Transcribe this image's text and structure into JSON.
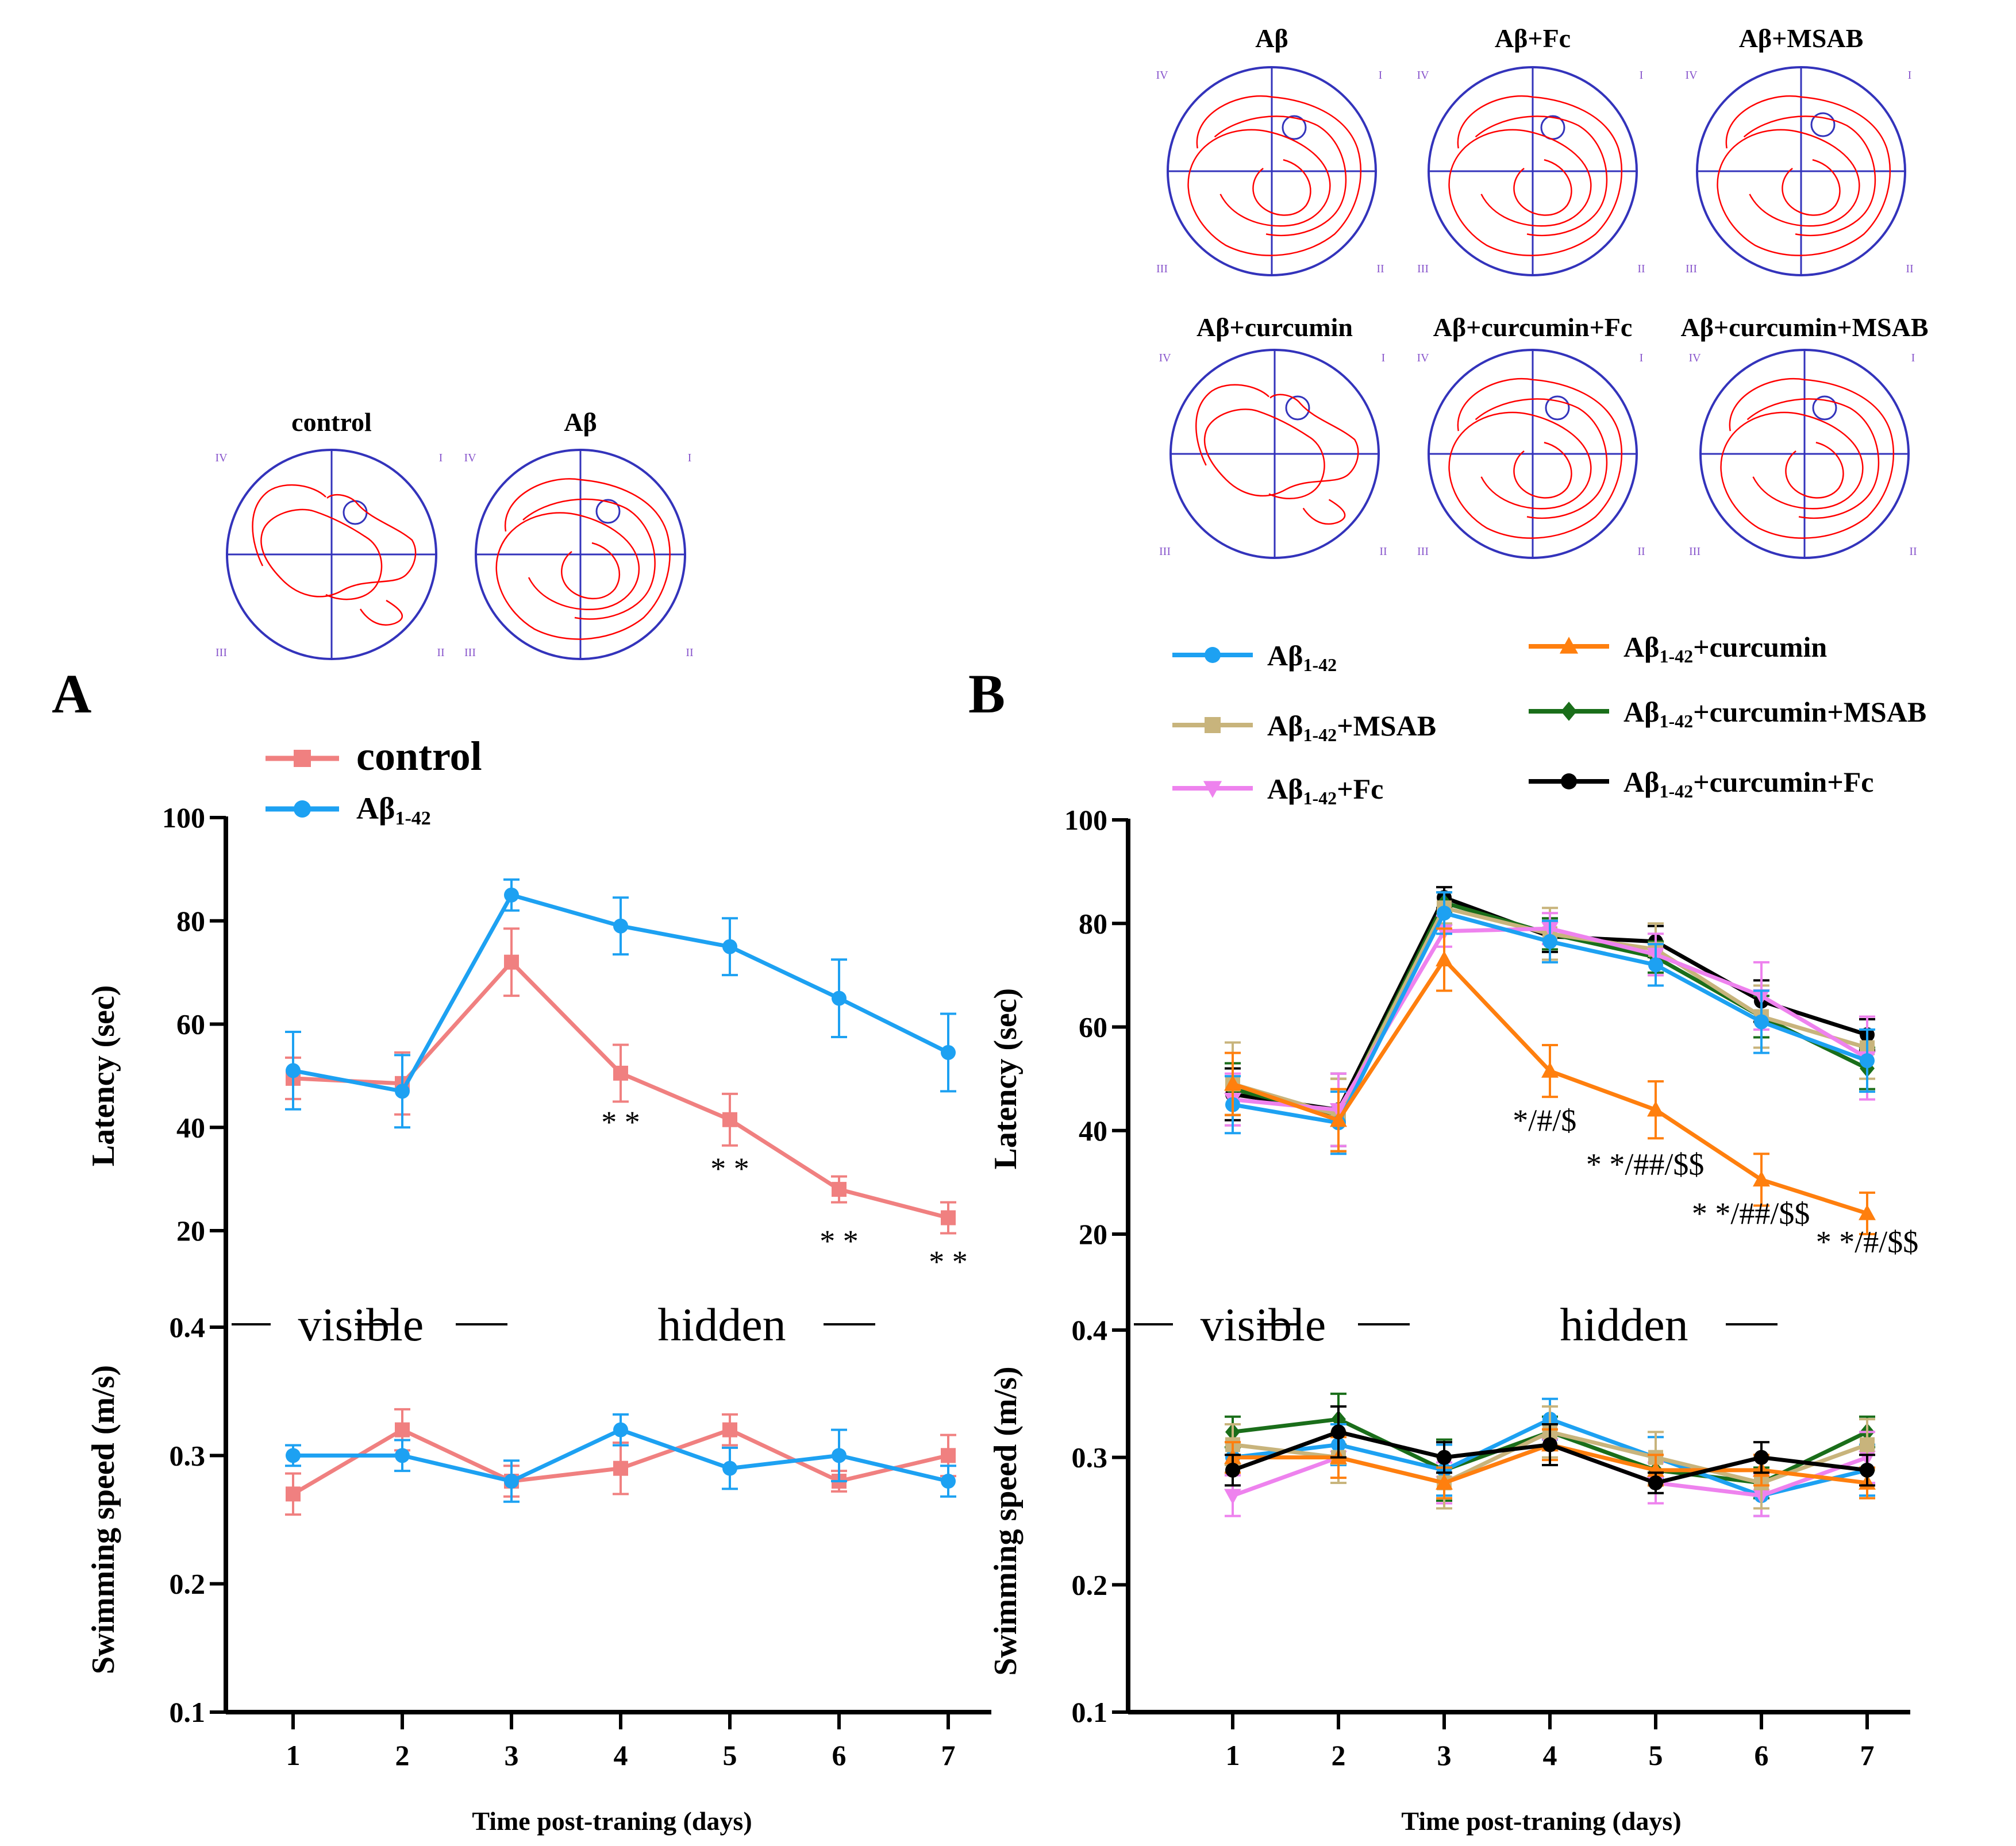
{
  "panel_labels": {
    "a": "A",
    "b": "B"
  },
  "colors": {
    "control": "#f08080",
    "abeta": "#1da1f2",
    "msab": "#c8b47c",
    "fc": "#ee82ee",
    "curcumin": "#ff7f0e",
    "curmsab": "#1a6e1a",
    "curfc": "#000000",
    "pool": "#3333bb",
    "track": "#ff0000",
    "quadrant": "#8855cc"
  },
  "quadrants": [
    "IV",
    "I",
    "III",
    "II"
  ],
  "maze_a": [
    {
      "label": "control"
    },
    {
      "label": "Aβ"
    }
  ],
  "maze_b": [
    {
      "label": "Aβ"
    },
    {
      "label": "Aβ+Fc"
    },
    {
      "label": "Aβ+MSAB"
    },
    {
      "label": "Aβ+curcumin"
    },
    {
      "label": "Aβ+curcumin+Fc"
    },
    {
      "label": "Aβ+curcumin+MSAB"
    }
  ],
  "chart_data": [
    {
      "id": "A-latency",
      "type": "line",
      "x": [
        1,
        2,
        3,
        4,
        5,
        6,
        7
      ],
      "ylabel": "Latency (sec)",
      "ylim": [
        0,
        100
      ],
      "yticks": [
        "20",
        "40",
        "60",
        "80",
        "100"
      ],
      "legend": [
        {
          "key": "control",
          "main": "control"
        },
        {
          "key": "abeta",
          "main": "Aβ",
          "sub": "1-42"
        }
      ],
      "series": [
        {
          "key": "control",
          "name": "control",
          "marker": "square",
          "values": [
            49.5,
            48.5,
            72,
            50.5,
            41.5,
            28,
            22.5
          ],
          "err": [
            4,
            6,
            6.5,
            5.5,
            5,
            2.5,
            3
          ]
        },
        {
          "key": "abeta",
          "name": "Aβ1-42",
          "marker": "circle",
          "values": [
            51,
            47,
            85,
            79,
            75,
            65,
            54.5
          ],
          "err": [
            7.5,
            7,
            3,
            5.5,
            5.5,
            7.5,
            7.5
          ]
        }
      ],
      "annotations": [
        {
          "x": 4,
          "y": 39,
          "text": "* *"
        },
        {
          "x": 5,
          "y": 30,
          "text": "* *"
        },
        {
          "x": 6,
          "y": 16,
          "text": "* *"
        },
        {
          "x": 7,
          "y": 12,
          "text": "* *"
        }
      ],
      "phase": {
        "visible": "visible",
        "hidden": "hidden"
      }
    },
    {
      "id": "A-speed",
      "type": "line",
      "x": [
        1,
        2,
        3,
        4,
        5,
        6,
        7
      ],
      "ylabel": "Swimming speed (m/s)",
      "xlabel": "Time post-traning (days)",
      "ylim": [
        0.1,
        0.4
      ],
      "yticks": [
        "0.1",
        "0.2",
        "0.3",
        "0.4"
      ],
      "xticks": [
        "1",
        "2",
        "3",
        "4",
        "5",
        "6",
        "7"
      ],
      "series": [
        {
          "key": "control",
          "marker": "square",
          "values": [
            0.27,
            0.32,
            0.28,
            0.29,
            0.32,
            0.28,
            0.3
          ],
          "err": [
            0.016,
            0.016,
            0.012,
            0.02,
            0.012,
            0.008,
            0.016
          ]
        },
        {
          "key": "abeta",
          "marker": "circle",
          "values": [
            0.3,
            0.3,
            0.28,
            0.32,
            0.29,
            0.3,
            0.28
          ],
          "err": [
            0.008,
            0.012,
            0.016,
            0.012,
            0.016,
            0.02,
            0.012
          ]
        }
      ]
    },
    {
      "id": "B-latency",
      "type": "line",
      "x": [
        1,
        2,
        3,
        4,
        5,
        6,
        7
      ],
      "ylabel": "Latency (sec)",
      "ylim": [
        0,
        100
      ],
      "yticks": [
        "20",
        "40",
        "60",
        "80",
        "100"
      ],
      "legend": [
        {
          "key": "abeta",
          "main": "Aβ",
          "sub": "1-42",
          "rest": "",
          "marker": "circle"
        },
        {
          "key": "msab",
          "main": "Aβ",
          "sub": "1-42",
          "rest": "+MSAB",
          "marker": "square"
        },
        {
          "key": "fc",
          "main": "Aβ",
          "sub": "1-42",
          "rest": "+Fc",
          "marker": "triangle-down"
        },
        {
          "key": "curcumin",
          "main": "Aβ",
          "sub": "1-42",
          "rest": "+curcumin",
          "marker": "triangle"
        },
        {
          "key": "curmsab",
          "main": "Aβ",
          "sub": "1-42",
          "rest": "+curcumin+MSAB",
          "marker": "diamond"
        },
        {
          "key": "curfc",
          "main": "Aβ",
          "sub": "1-42",
          "rest": "+curcumin+Fc",
          "marker": "circle"
        }
      ],
      "series": [
        {
          "key": "curfc",
          "marker": "circle",
          "values": [
            47,
            44,
            85,
            77.5,
            76.5,
            65,
            58.5
          ],
          "err": [
            5,
            7,
            2,
            3,
            3,
            4,
            3
          ]
        },
        {
          "key": "curmsab",
          "marker": "diamond",
          "values": [
            48,
            43,
            84,
            78,
            73.5,
            62,
            52
          ],
          "err": [
            5,
            7,
            2,
            3,
            3,
            4,
            4
          ]
        },
        {
          "key": "msab",
          "marker": "square",
          "values": [
            49,
            43,
            83,
            78,
            75,
            62,
            56
          ],
          "err": [
            8,
            7,
            3,
            5,
            5,
            6,
            6
          ]
        },
        {
          "key": "fc",
          "marker": "triangle-down",
          "values": [
            46,
            44,
            78.5,
            79,
            74,
            66,
            54
          ],
          "err": [
            5,
            7,
            3,
            3,
            4,
            6.5,
            8
          ]
        },
        {
          "key": "abeta",
          "marker": "circle",
          "values": [
            45,
            41.5,
            82,
            76.5,
            72,
            61,
            53.5
          ],
          "err": [
            5.5,
            6,
            4,
            4,
            4,
            6,
            6
          ]
        },
        {
          "key": "curcumin",
          "marker": "triangle",
          "values": [
            49,
            42,
            73,
            51.5,
            44,
            30.5,
            24
          ],
          "err": [
            6,
            6,
            6,
            5,
            5.5,
            5,
            4
          ]
        }
      ],
      "annotations": [
        {
          "x": 3.95,
          "y": 40,
          "text": "*/#/$"
        },
        {
          "x": 4.9,
          "y": 31.5,
          "text": "* */##/$$"
        },
        {
          "x": 5.9,
          "y": 22,
          "text": "* */##/$$"
        },
        {
          "x": 7,
          "y": 16.5,
          "text": "* */#/$$"
        }
      ],
      "phase": {
        "visible": "visible",
        "hidden": "hidden"
      }
    },
    {
      "id": "B-speed",
      "type": "line",
      "x": [
        1,
        2,
        3,
        4,
        5,
        6,
        7
      ],
      "ylabel": "Swimming speed (m/s)",
      "xlabel": "Time post-traning (days)",
      "ylim": [
        0.1,
        0.4
      ],
      "yticks": [
        "0.1",
        "0.2",
        "0.3",
        "0.4"
      ],
      "xticks": [
        "1",
        "2",
        "3",
        "4",
        "5",
        "6",
        "7"
      ],
      "series": [
        {
          "key": "curmsab",
          "marker": "diamond",
          "values": [
            0.32,
            0.33,
            0.29,
            0.32,
            0.29,
            0.28,
            0.32
          ],
          "err": [
            0.012,
            0.02,
            0.024,
            0.012,
            0.012,
            0.012,
            0.012
          ]
        },
        {
          "key": "abeta",
          "marker": "circle",
          "values": [
            0.3,
            0.31,
            0.29,
            0.33,
            0.3,
            0.27,
            0.29
          ],
          "err": [
            0.012,
            0.016,
            0.02,
            0.016,
            0.016,
            0.016,
            0.02
          ]
        },
        {
          "key": "fc",
          "marker": "triangle-down",
          "values": [
            0.27,
            0.3,
            0.28,
            0.31,
            0.28,
            0.27,
            0.3
          ],
          "err": [
            0.016,
            0.02,
            0.016,
            0.016,
            0.016,
            0.016,
            0.02
          ]
        },
        {
          "key": "msab",
          "marker": "square",
          "values": [
            0.31,
            0.3,
            0.28,
            0.32,
            0.3,
            0.28,
            0.31
          ],
          "err": [
            0.016,
            0.02,
            0.02,
            0.02,
            0.02,
            0.02,
            0.02
          ]
        },
        {
          "key": "curcumin",
          "marker": "triangle",
          "values": [
            0.3,
            0.3,
            0.28,
            0.31,
            0.29,
            0.29,
            0.28
          ],
          "err": [
            0.012,
            0.016,
            0.012,
            0.012,
            0.012,
            0.012,
            0.012
          ]
        },
        {
          "key": "curfc",
          "marker": "circle",
          "values": [
            0.29,
            0.32,
            0.3,
            0.31,
            0.28,
            0.3,
            0.29
          ],
          "err": [
            0.012,
            0.02,
            0.012,
            0.016,
            0.008,
            0.012,
            0.012
          ]
        }
      ]
    }
  ]
}
